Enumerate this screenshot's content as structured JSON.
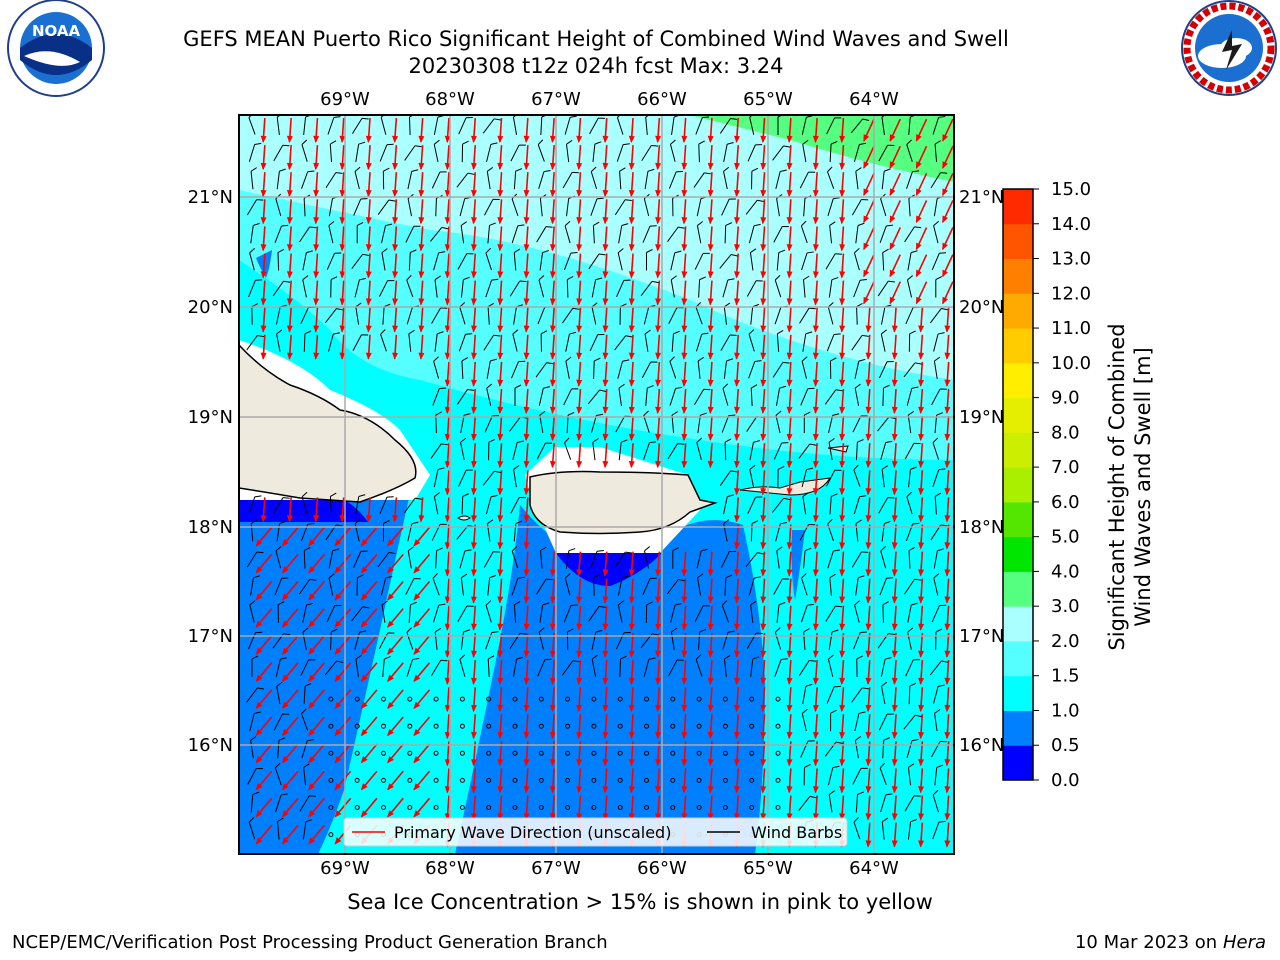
{
  "header": {
    "title_line1": "GEFS MEAN Puerto Rico Significant Height of Combined Wind Waves and Swell",
    "title_line2": "20230308 t12z 024h fcst   Max: 3.24"
  },
  "logos": {
    "left": {
      "text": "NOAA",
      "ring_text": "NATIONAL OCEANIC AND ATMOSPHERIC ADMINISTRATION · U.S. DEPARTMENT OF COMMERCE"
    },
    "right": {
      "ring_text": "NATIONAL WEATHER SERVICE"
    }
  },
  "map": {
    "lon_labels": [
      "69°W",
      "68°W",
      "67°W",
      "66°W",
      "65°W",
      "64°W"
    ],
    "lat_labels": [
      "21°N",
      "20°N",
      "19°N",
      "18°N",
      "17°N",
      "16°N"
    ],
    "legend": {
      "wave_label": "Primary Wave Direction (unscaled)",
      "barb_label": "Wind Barbs",
      "wave_color": "#ff0000",
      "barb_color": "#000000"
    },
    "land_color": "#eeeade",
    "ocean_colors": {
      "band_0.5_1.0": "#0080ff",
      "band_1.0_1.5": "#00ffff",
      "band_1.5_2.0": "#55ffff",
      "band_2.0_3.0": "#aaffff",
      "band_3.0_4.0": "#55ff7f",
      "band_0.0_0.5": "#0000ff"
    }
  },
  "colorbar": {
    "label_line1": "Significant Height of Combined",
    "label_line2": "Wind Waves and Swell [m]",
    "ticks": [
      "0.0",
      "0.5",
      "1.0",
      "1.5",
      "2.0",
      "3.0",
      "4.0",
      "5.0",
      "6.0",
      "7.0",
      "8.0",
      "9.0",
      "10.0",
      "11.0",
      "12.0",
      "13.0",
      "14.0",
      "15.0"
    ],
    "colors": [
      "#0000ff",
      "#0080ff",
      "#00ffff",
      "#55ffff",
      "#aaffff",
      "#55ff7f",
      "#00e600",
      "#55e600",
      "#aaee00",
      "#ccee00",
      "#e6ee00",
      "#ffee00",
      "#ffcc00",
      "#ffaa00",
      "#ff8000",
      "#ff5500",
      "#ff2a00"
    ]
  },
  "footer": {
    "caption": "Sea Ice Concentration > 15% is shown in pink to yellow",
    "credit_left": "NCEP/EMC/Verification Post Processing Product Generation Branch",
    "credit_right_date": "10 Mar 2023 on",
    "credit_right_host": "Hera"
  }
}
